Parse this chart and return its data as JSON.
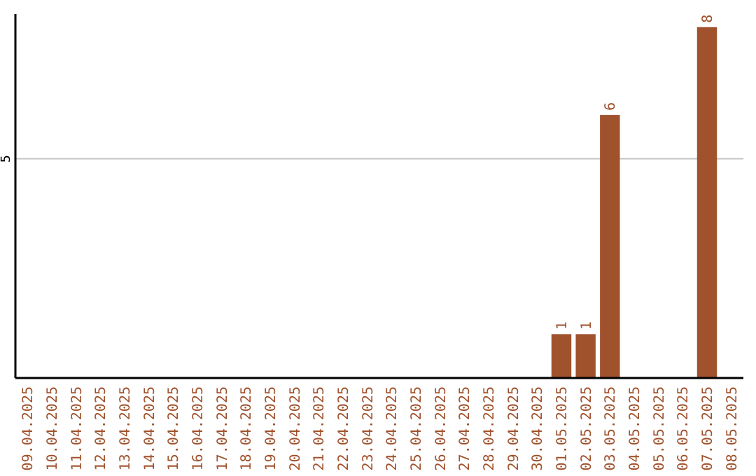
{
  "chart_data": {
    "type": "bar",
    "categories": [
      "09.04.2025",
      "10.04.2025",
      "11.04.2025",
      "12.04.2025",
      "13.04.2025",
      "14.04.2025",
      "15.04.2025",
      "16.04.2025",
      "17.04.2025",
      "18.04.2025",
      "19.04.2025",
      "20.04.2025",
      "21.04.2025",
      "22.04.2025",
      "23.04.2025",
      "24.04.2025",
      "25.04.2025",
      "26.04.2025",
      "27.04.2025",
      "28.04.2025",
      "29.04.2025",
      "30.04.2025",
      "01.05.2025",
      "02.05.2025",
      "03.05.2025",
      "04.05.2025",
      "05.05.2025",
      "06.05.2025",
      "07.05.2025",
      "08.05.2025"
    ],
    "values": [
      null,
      null,
      null,
      null,
      null,
      null,
      null,
      null,
      null,
      null,
      null,
      null,
      null,
      null,
      null,
      null,
      null,
      null,
      null,
      null,
      null,
      null,
      1,
      1,
      6,
      null,
      null,
      null,
      8,
      null
    ],
    "color": "#a0522d",
    "ylim": [
      0,
      8.3
    ],
    "ref_lines": [
      {
        "axis": "y",
        "value": 5,
        "label": "5",
        "color": "#c8c8c8"
      }
    ],
    "data_labels": true
  }
}
